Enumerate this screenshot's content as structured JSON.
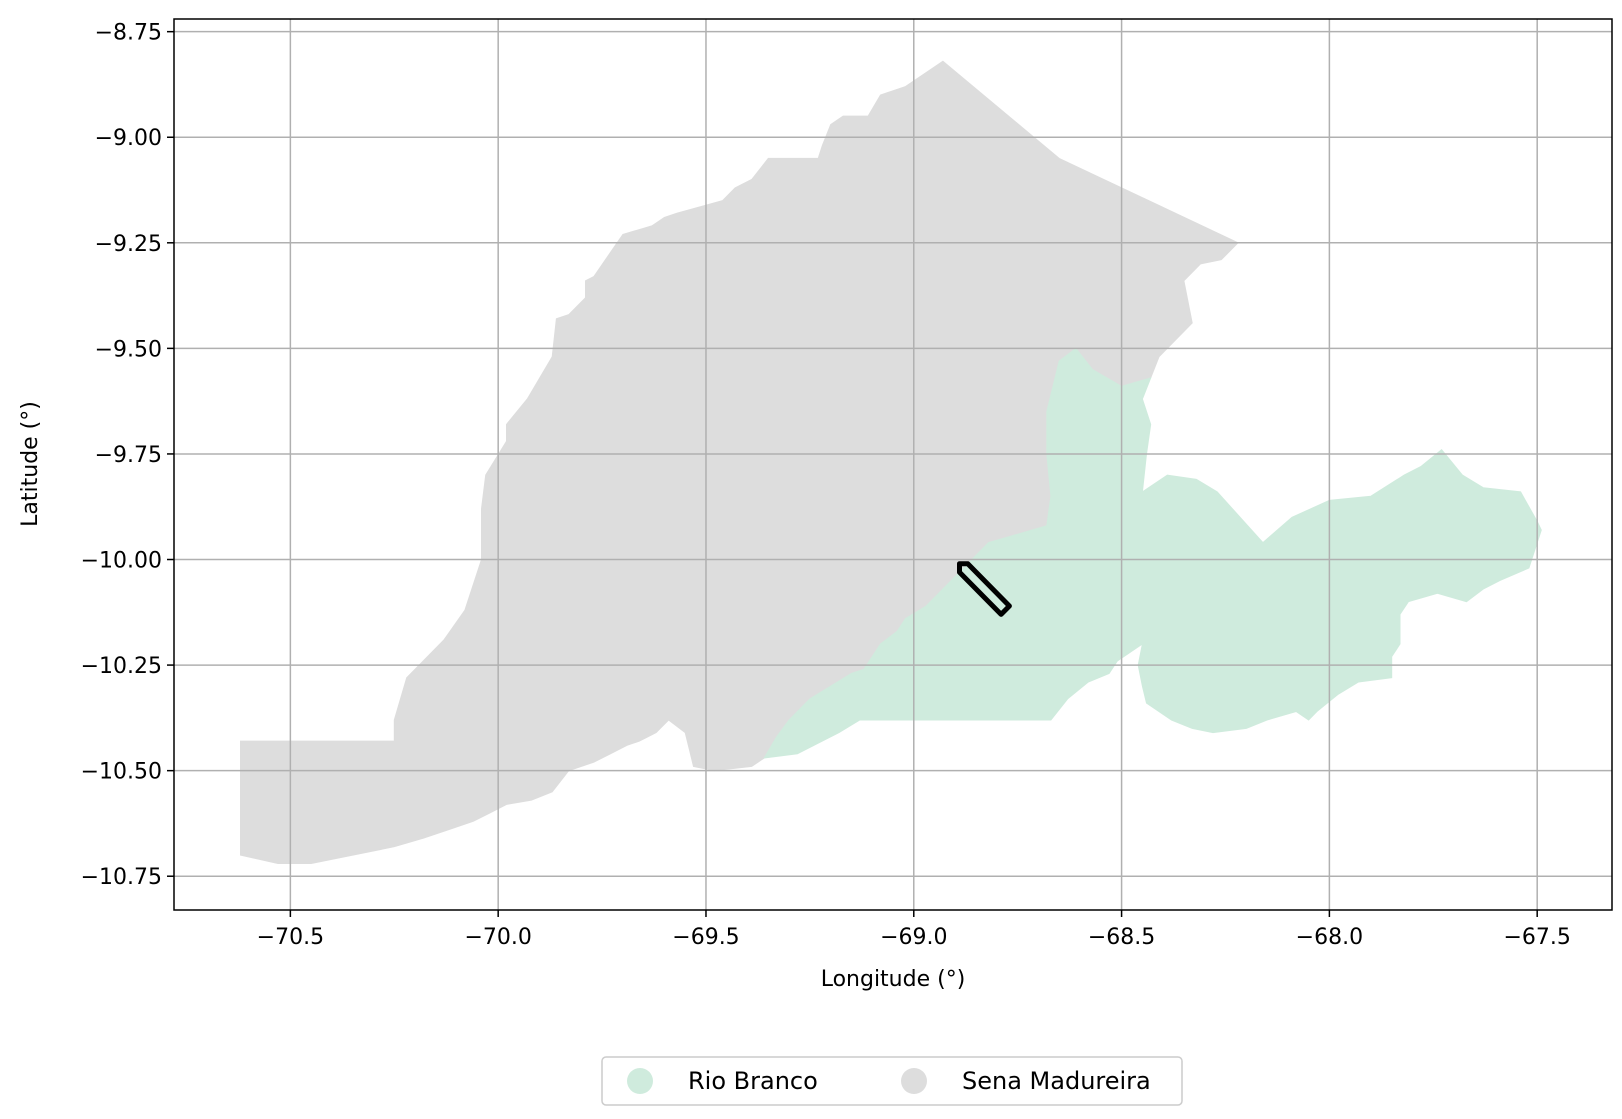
{
  "chart_data": {
    "type": "map",
    "title": "",
    "xlabel": "Longitude (°)",
    "ylabel": "Latitude (°)",
    "xlim": [
      -70.78,
      -67.32
    ],
    "ylim": [
      -10.83,
      -8.72
    ],
    "grid": true,
    "x_ticks": [
      -70.5,
      -70.0,
      -69.5,
      -69.0,
      -68.5,
      -68.0,
      -67.5
    ],
    "x_tick_labels": [
      "−70.5",
      "−70.0",
      "−69.5",
      "−69.0",
      "−68.5",
      "−68.0",
      "−67.5"
    ],
    "y_ticks": [
      -8.75,
      -9.0,
      -9.25,
      -9.5,
      -9.75,
      -10.0,
      -10.25,
      -10.5,
      -10.75
    ],
    "y_tick_labels": [
      "−8.75",
      "−9.00",
      "−9.25",
      "−9.50",
      "−9.75",
      "−10.00",
      "−10.25",
      "−10.50",
      "−10.75"
    ],
    "legend_position": "bottom-center",
    "regions": [
      {
        "name": "Sena Madureira",
        "color": "#dddddd",
        "coordinates": [
          [
            -70.62,
            -10.43
          ],
          [
            -70.25,
            -10.43
          ],
          [
            -70.25,
            -10.38
          ],
          [
            -70.22,
            -10.28
          ],
          [
            -70.16,
            -10.22
          ],
          [
            -70.13,
            -10.19
          ],
          [
            -70.08,
            -10.12
          ],
          [
            -70.04,
            -10.0
          ],
          [
            -70.04,
            -9.94
          ],
          [
            -70.04,
            -9.88
          ],
          [
            -70.03,
            -9.8
          ],
          [
            -69.98,
            -9.72
          ],
          [
            -69.98,
            -9.68
          ],
          [
            -69.93,
            -9.62
          ],
          [
            -69.87,
            -9.52
          ],
          [
            -69.86,
            -9.43
          ],
          [
            -69.83,
            -9.42
          ],
          [
            -69.79,
            -9.38
          ],
          [
            -69.79,
            -9.34
          ],
          [
            -69.77,
            -9.33
          ],
          [
            -69.7,
            -9.23
          ],
          [
            -69.63,
            -9.21
          ],
          [
            -69.6,
            -9.19
          ],
          [
            -69.57,
            -9.18
          ],
          [
            -69.46,
            -9.15
          ],
          [
            -69.43,
            -9.12
          ],
          [
            -69.39,
            -9.1
          ],
          [
            -69.35,
            -9.05
          ],
          [
            -69.23,
            -9.05
          ],
          [
            -69.22,
            -9.02
          ],
          [
            -69.2,
            -8.97
          ],
          [
            -69.17,
            -8.95
          ],
          [
            -69.11,
            -8.95
          ],
          [
            -69.08,
            -8.9
          ],
          [
            -69.02,
            -8.88
          ],
          [
            -68.93,
            -8.82
          ],
          [
            -68.65,
            -9.05
          ],
          [
            -68.22,
            -9.25
          ],
          [
            -68.26,
            -9.29
          ],
          [
            -68.31,
            -9.3
          ],
          [
            -68.35,
            -9.34
          ],
          [
            -68.33,
            -9.44
          ],
          [
            -68.41,
            -9.52
          ],
          [
            -68.43,
            -9.57
          ],
          [
            -68.5,
            -9.59
          ],
          [
            -68.57,
            -9.55
          ],
          [
            -68.61,
            -9.5
          ],
          [
            -68.65,
            -9.53
          ],
          [
            -68.68,
            -9.65
          ],
          [
            -68.68,
            -9.75
          ],
          [
            -68.67,
            -9.85
          ],
          [
            -68.68,
            -9.92
          ],
          [
            -68.75,
            -9.94
          ],
          [
            -68.82,
            -9.96
          ],
          [
            -68.86,
            -10.0
          ],
          [
            -68.92,
            -10.06
          ],
          [
            -68.97,
            -10.11
          ],
          [
            -69.02,
            -10.14
          ],
          [
            -69.04,
            -10.17
          ],
          [
            -69.08,
            -10.2
          ],
          [
            -69.12,
            -10.26
          ],
          [
            -69.15,
            -10.27
          ],
          [
            -69.2,
            -10.3
          ],
          [
            -69.25,
            -10.33
          ],
          [
            -69.3,
            -10.38
          ],
          [
            -69.33,
            -10.42
          ],
          [
            -69.36,
            -10.47
          ],
          [
            -69.39,
            -10.49
          ],
          [
            -69.48,
            -10.5
          ],
          [
            -69.53,
            -10.49
          ],
          [
            -69.54,
            -10.45
          ],
          [
            -69.55,
            -10.41
          ],
          [
            -69.59,
            -10.38
          ],
          [
            -69.62,
            -10.41
          ],
          [
            -69.66,
            -10.43
          ],
          [
            -69.69,
            -10.44
          ],
          [
            -69.73,
            -10.46
          ],
          [
            -69.77,
            -10.48
          ],
          [
            -69.83,
            -10.5
          ],
          [
            -69.87,
            -10.55
          ],
          [
            -69.92,
            -10.57
          ],
          [
            -69.98,
            -10.58
          ],
          [
            -70.02,
            -10.6
          ],
          [
            -70.06,
            -10.62
          ],
          [
            -70.12,
            -10.64
          ],
          [
            -70.18,
            -10.66
          ],
          [
            -70.25,
            -10.68
          ],
          [
            -70.35,
            -10.7
          ],
          [
            -70.45,
            -10.72
          ],
          [
            -70.53,
            -10.72
          ],
          [
            -70.62,
            -10.7
          ],
          [
            -70.62,
            -10.43
          ]
        ]
      },
      {
        "name": "Rio Branco",
        "color": "#cfebdd",
        "coordinates": [
          [
            -69.36,
            -10.47
          ],
          [
            -69.33,
            -10.42
          ],
          [
            -69.3,
            -10.38
          ],
          [
            -69.25,
            -10.33
          ],
          [
            -69.2,
            -10.3
          ],
          [
            -69.15,
            -10.27
          ],
          [
            -69.12,
            -10.26
          ],
          [
            -69.08,
            -10.2
          ],
          [
            -69.04,
            -10.17
          ],
          [
            -69.02,
            -10.14
          ],
          [
            -68.97,
            -10.11
          ],
          [
            -68.92,
            -10.06
          ],
          [
            -68.86,
            -10.0
          ],
          [
            -68.82,
            -9.96
          ],
          [
            -68.75,
            -9.94
          ],
          [
            -68.68,
            -9.92
          ],
          [
            -68.67,
            -9.85
          ],
          [
            -68.68,
            -9.75
          ],
          [
            -68.68,
            -9.65
          ],
          [
            -68.65,
            -9.53
          ],
          [
            -68.61,
            -9.5
          ],
          [
            -68.57,
            -9.55
          ],
          [
            -68.5,
            -9.59
          ],
          [
            -68.43,
            -9.57
          ],
          [
            -68.45,
            -9.62
          ],
          [
            -68.43,
            -9.68
          ],
          [
            -68.44,
            -9.75
          ],
          [
            -68.45,
            -9.84
          ],
          [
            -68.39,
            -9.8
          ],
          [
            -68.32,
            -9.81
          ],
          [
            -68.27,
            -9.84
          ],
          [
            -68.16,
            -9.96
          ],
          [
            -68.09,
            -9.9
          ],
          [
            -68.0,
            -9.86
          ],
          [
            -67.9,
            -9.85
          ],
          [
            -67.82,
            -9.8
          ],
          [
            -67.78,
            -9.78
          ],
          [
            -67.73,
            -9.74
          ],
          [
            -67.68,
            -9.8
          ],
          [
            -67.63,
            -9.83
          ],
          [
            -67.54,
            -9.84
          ],
          [
            -67.5,
            -9.91
          ],
          [
            -67.49,
            -9.93
          ],
          [
            -67.52,
            -10.02
          ],
          [
            -67.59,
            -10.05
          ],
          [
            -67.63,
            -10.07
          ],
          [
            -67.67,
            -10.1
          ],
          [
            -67.74,
            -10.08
          ],
          [
            -67.81,
            -10.1
          ],
          [
            -67.83,
            -10.13
          ],
          [
            -67.83,
            -10.2
          ],
          [
            -67.85,
            -10.23
          ],
          [
            -67.85,
            -10.28
          ],
          [
            -67.93,
            -10.29
          ],
          [
            -67.98,
            -10.32
          ],
          [
            -68.03,
            -10.36
          ],
          [
            -68.05,
            -10.38
          ],
          [
            -68.08,
            -10.36
          ],
          [
            -68.15,
            -10.38
          ],
          [
            -68.2,
            -10.4
          ],
          [
            -68.28,
            -10.41
          ],
          [
            -68.33,
            -10.4
          ],
          [
            -68.38,
            -10.38
          ],
          [
            -68.44,
            -10.34
          ],
          [
            -68.45,
            -10.3
          ],
          [
            -68.46,
            -10.25
          ],
          [
            -68.45,
            -10.2
          ],
          [
            -68.48,
            -10.22
          ],
          [
            -68.51,
            -10.24
          ],
          [
            -68.53,
            -10.27
          ],
          [
            -68.58,
            -10.29
          ],
          [
            -68.63,
            -10.33
          ],
          [
            -68.67,
            -10.38
          ],
          [
            -68.9,
            -10.38
          ],
          [
            -69.13,
            -10.38
          ],
          [
            -69.18,
            -10.41
          ],
          [
            -69.24,
            -10.44
          ],
          [
            -69.28,
            -10.46
          ],
          [
            -69.36,
            -10.47
          ]
        ]
      }
    ],
    "overlays": [
      {
        "name": "outlined strip",
        "color": "#000000",
        "coordinates": [
          [
            -68.89,
            -10.01
          ],
          [
            -68.87,
            -10.01
          ],
          [
            -68.77,
            -10.11
          ],
          [
            -68.79,
            -10.13
          ],
          [
            -68.89,
            -10.03
          ],
          [
            -68.89,
            -10.01
          ]
        ]
      }
    ],
    "legend": [
      {
        "label": "Rio Branco",
        "color": "#cfebdd"
      },
      {
        "label": "Sena Madureira",
        "color": "#dddddd"
      }
    ]
  }
}
